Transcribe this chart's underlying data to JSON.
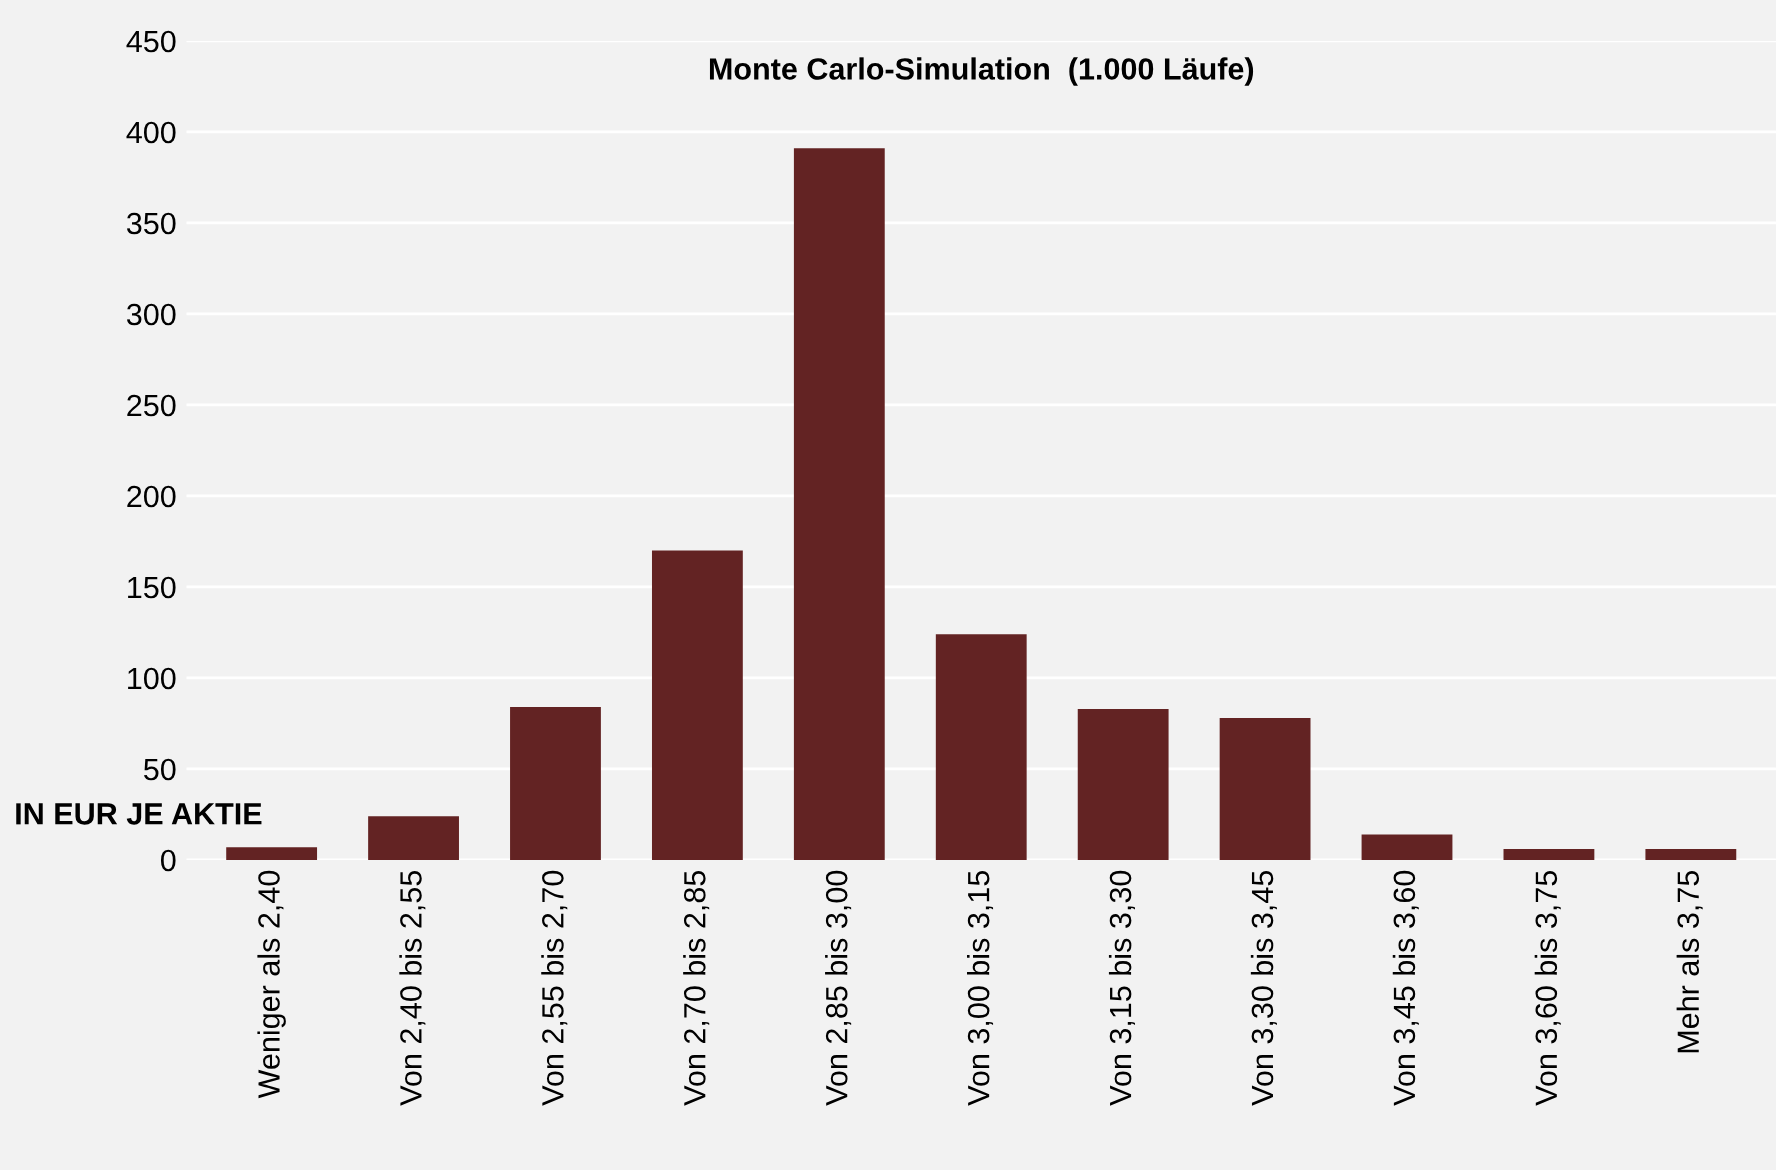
{
  "chart_data": {
    "type": "bar",
    "title": "Monte Carlo-Simulation  (1.000 Läufe)",
    "categories": [
      "Weniger als 2,40",
      "Von 2,40 bis 2,55",
      "Von 2,55 bis 2,70",
      "Von 2,70 bis 2,85",
      "Von 2,85 bis 3,00",
      "Von 3,00 bis 3,15",
      "Von 3,15 bis 3,30",
      "Von 3,30 bis 3,45",
      "Von 3,45 bis 3,60",
      "Von 3,60 bis 3,75",
      "Mehr als 3,75"
    ],
    "values": [
      7,
      24,
      84,
      170,
      391,
      124,
      83,
      78,
      14,
      6,
      6
    ],
    "color": "#632323",
    "ylim": [
      0,
      450
    ],
    "yticks": [
      0,
      50,
      100,
      150,
      200,
      250,
      300,
      350,
      400,
      450
    ],
    "grid": "y",
    "annotations": [
      "IN EUR JE AKTIE"
    ]
  }
}
